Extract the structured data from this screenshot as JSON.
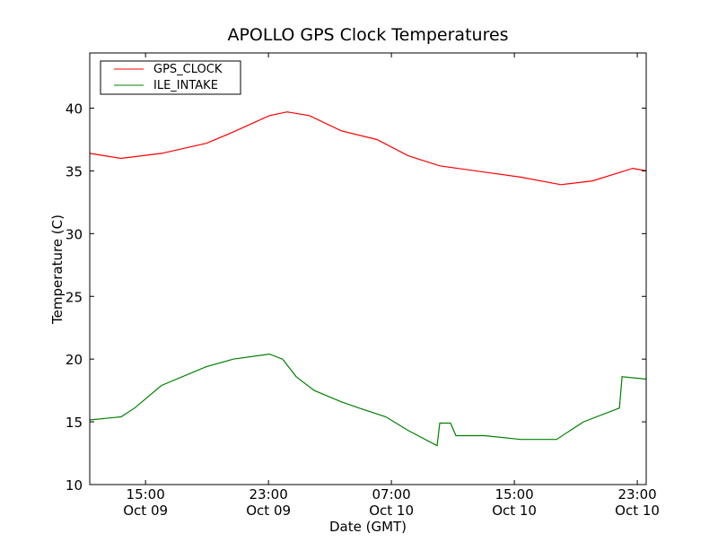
{
  "chart_data": {
    "type": "line",
    "title": "APOLLO GPS Clock Temperatures",
    "xlabel": "Date (GMT)",
    "ylabel": "Temperature (C)",
    "x_units": "hours since Oct 09 00:00 GMT",
    "xlim": [
      11.37,
      47.58
    ],
    "ylim": [
      10,
      44.4
    ],
    "yticks": [
      10,
      15,
      20,
      25,
      30,
      35,
      40
    ],
    "xticks": [
      {
        "value": 15,
        "label": [
          "15:00",
          "Oct 09"
        ]
      },
      {
        "value": 23,
        "label": [
          "23:00",
          "Oct 09"
        ]
      },
      {
        "value": 31,
        "label": [
          "07:00",
          "Oct 10"
        ]
      },
      {
        "value": 39,
        "label": [
          "15:00",
          "Oct 10"
        ]
      },
      {
        "value": 47,
        "label": [
          "23:00",
          "Oct 10"
        ]
      }
    ],
    "grid": false,
    "legend_position": "top-left",
    "series": [
      {
        "name": "GPS_CLOCK",
        "color": "#ff0000",
        "x": [
          11.37,
          13.41,
          16.04,
          18.96,
          20.71,
          23.05,
          24.22,
          25.68,
          27.72,
          30.06,
          32.11,
          34.15,
          37.07,
          39.41,
          42.04,
          44.08,
          46.71,
          47.58
        ],
        "y": [
          36.4,
          36.0,
          36.4,
          37.2,
          38.1,
          39.4,
          39.7,
          39.4,
          38.2,
          37.5,
          36.2,
          35.4,
          34.9,
          34.5,
          33.9,
          34.2,
          35.2,
          35.0
        ]
      },
      {
        "name": "ILE_INTAKE",
        "color": "#008000",
        "x": [
          11.37,
          13.41,
          14.29,
          16.04,
          18.96,
          20.71,
          23.05,
          23.92,
          24.8,
          25.97,
          27.72,
          28.89,
          30.64,
          32.11,
          33.97,
          34.15,
          34.85,
          35.2,
          37.07,
          39.41,
          41.75,
          43.5,
          45.84,
          46.01,
          47.58
        ],
        "y": [
          15.15,
          15.4,
          16.1,
          17.9,
          19.4,
          20.0,
          20.4,
          20.0,
          18.6,
          17.5,
          16.6,
          16.1,
          15.4,
          14.3,
          13.1,
          14.9,
          14.9,
          13.9,
          13.9,
          13.6,
          13.6,
          15.0,
          16.1,
          18.6,
          18.4
        ]
      }
    ]
  }
}
